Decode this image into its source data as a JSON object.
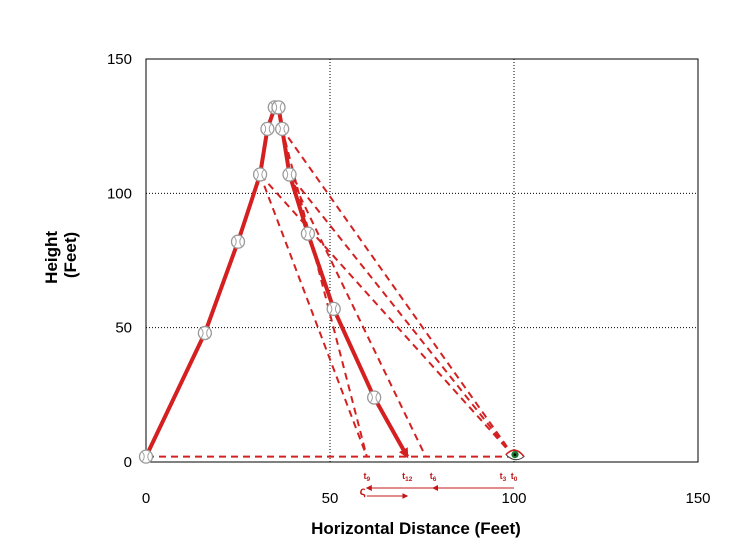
{
  "chart_data": {
    "type": "scatter",
    "title": "",
    "xlabel": "Horizontal Distance (Feet)",
    "ylabel_lines": [
      "Height",
      "(Feet)"
    ],
    "xlim": [
      0,
      150
    ],
    "ylim": [
      0,
      150
    ],
    "x_ticks": [
      0,
      50,
      100,
      150
    ],
    "y_ticks": [
      0,
      50,
      100,
      150
    ],
    "grid": "dotted",
    "colors": {
      "trajectory": "#d42020",
      "sightline": "#d42020",
      "arrow": "#c01818",
      "ball_fill": "#ffffff",
      "ball_edge": "#999999",
      "eye": "#1a7a30",
      "frame": "#000000"
    },
    "observer": {
      "x": 100,
      "y": 2,
      "icon": "eye-icon"
    },
    "balls": [
      {
        "x": 0,
        "y": 2
      },
      {
        "x": 16,
        "y": 48
      },
      {
        "x": 25,
        "y": 82
      },
      {
        "x": 31,
        "y": 107
      },
      {
        "x": 33,
        "y": 124
      },
      {
        "x": 35,
        "y": 132
      },
      {
        "x": 36,
        "y": 132
      },
      {
        "x": 37,
        "y": 124
      },
      {
        "x": 39,
        "y": 107
      },
      {
        "x": 44,
        "y": 85
      },
      {
        "x": 51,
        "y": 57
      },
      {
        "x": 62,
        "y": 24
      }
    ],
    "trajectory": [
      {
        "x": 0,
        "y": 2
      },
      {
        "x": 16,
        "y": 48
      },
      {
        "x": 25,
        "y": 82
      },
      {
        "x": 31,
        "y": 107
      },
      {
        "x": 33,
        "y": 124
      },
      {
        "x": 35,
        "y": 132
      },
      {
        "x": 36,
        "y": 132
      },
      {
        "x": 37,
        "y": 124
      },
      {
        "x": 39,
        "y": 107
      },
      {
        "x": 44,
        "y": 85
      },
      {
        "x": 51,
        "y": 57
      },
      {
        "x": 62,
        "y": 24
      },
      {
        "x": 71,
        "y": 2
      }
    ],
    "sightline_targets": [
      {
        "x": 0,
        "y": 2,
        "hits_x": 100
      },
      {
        "x": 31,
        "y": 107,
        "hits_x": 60
      },
      {
        "x": 37,
        "y": 124,
        "hits_x": 60
      },
      {
        "x": 39,
        "y": 107,
        "hits_x": 76
      }
    ],
    "time_markers": [
      {
        "base": "t",
        "sub": "9",
        "x": 60
      },
      {
        "base": "t",
        "sub": "12",
        "x": 71
      },
      {
        "base": "t",
        "sub": "6",
        "x": 78
      },
      {
        "base": "t",
        "sub": "3",
        "x": 97
      },
      {
        "base": "t",
        "sub": "0",
        "x": 100
      }
    ],
    "motion_arrows": [
      {
        "from": 100,
        "to": 78
      },
      {
        "from": 78,
        "to": 60
      },
      {
        "from": 60,
        "to": 71
      }
    ],
    "reversal_glyph": "ς"
  }
}
